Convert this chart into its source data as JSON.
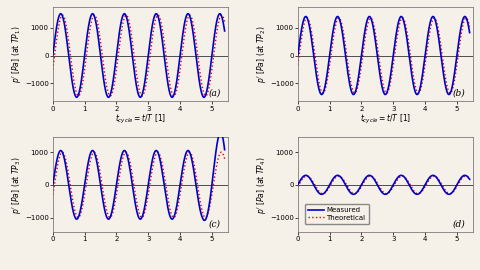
{
  "subplots": [
    {
      "label": "(a)",
      "ylabel_tp": "1",
      "amp_meas": 1500,
      "amp_theo": 1450,
      "phase_meas": 0.0,
      "phase_theo": -0.35,
      "growth_meas": false,
      "show_xlabel": true,
      "ylim": [
        -1650,
        1750
      ],
      "yticks": [
        -1000,
        0,
        1000
      ],
      "show_legend": false
    },
    {
      "label": "(b)",
      "ylabel_tp": "2",
      "amp_meas": 1400,
      "amp_theo": 1350,
      "phase_meas": 0.0,
      "phase_theo": -0.25,
      "growth_meas": false,
      "show_xlabel": true,
      "ylim": [
        -1650,
        1750
      ],
      "yticks": [
        -1000,
        0,
        1000
      ],
      "show_legend": false
    },
    {
      "label": "(c)",
      "ylabel_tp": "3",
      "amp_meas": 1050,
      "amp_theo": 1000,
      "phase_meas": 0.0,
      "phase_theo": -0.3,
      "growth_meas": true,
      "show_xlabel": false,
      "ylim": [
        -1450,
        1450
      ],
      "yticks": [
        -1000,
        0,
        1000
      ],
      "show_legend": false
    },
    {
      "label": "(d)",
      "ylabel_tp": "4",
      "amp_meas": 290,
      "amp_theo": 270,
      "phase_meas": 0.0,
      "phase_theo": -0.2,
      "growth_meas": false,
      "show_xlabel": false,
      "ylim": [
        -1450,
        1450
      ],
      "yticks": [
        -1000,
        0,
        1000
      ],
      "show_legend": true
    }
  ],
  "color_measured": "#0000CC",
  "color_theoretical": "#DD0000",
  "lw_measured": 1.2,
  "lw_theoretical": 1.0,
  "xlabel": "$t_{cycle} = t/T$ $[1]$",
  "xlim": [
    0,
    5.5
  ],
  "xticks": [
    0,
    1,
    2,
    3,
    4,
    5
  ],
  "freq": 1.0,
  "n_points": 3000,
  "t_end": 5.4,
  "bg_color": "#f5f0e8",
  "fig_bg": "#f5f0e8"
}
